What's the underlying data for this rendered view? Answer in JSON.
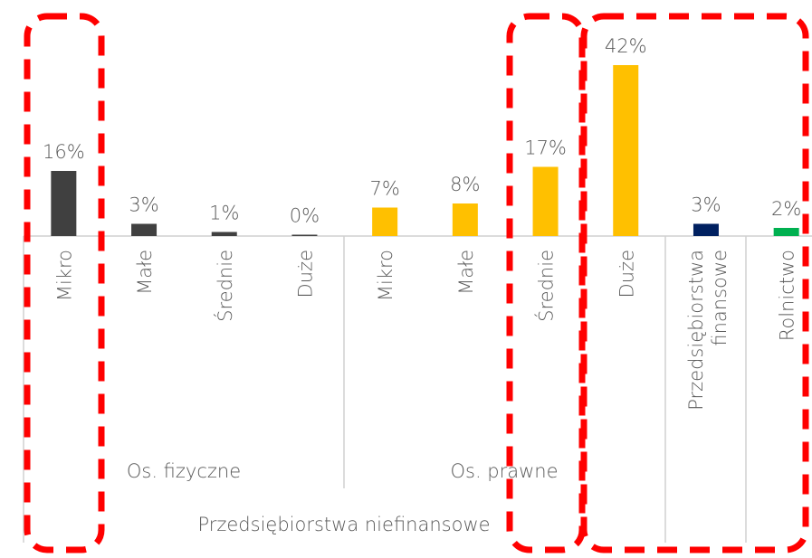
{
  "chart_data": {
    "type": "bar",
    "categories": [
      "Mikro",
      "Małe",
      "Średnie",
      "Duże",
      "Mikro",
      "Małe",
      "Średnie",
      "Duże",
      "Przedsiębiorstwa finansowe",
      "Rolnictwo"
    ],
    "values": [
      16,
      3,
      1,
      0,
      7,
      8,
      17,
      42,
      3,
      2
    ],
    "value_labels": [
      "16%",
      "3%",
      "1%",
      "0%",
      "7%",
      "8%",
      "17%",
      "42%",
      "3%",
      "2%"
    ],
    "colors": [
      "#404040",
      "#404040",
      "#404040",
      "#404040",
      "#ffc000",
      "#ffc000",
      "#ffc000",
      "#ffc000",
      "#002060",
      "#00b050"
    ],
    "groups": [
      "Os. fizyczne",
      "Os. prawne",
      "Przedsiębiorstwa niefinansowe"
    ]
  }
}
